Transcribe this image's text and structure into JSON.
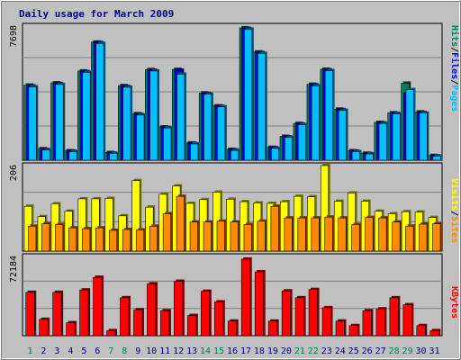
{
  "chart_data": [
    {
      "type": "bar",
      "panel": "pages_files_hits",
      "title": "Daily usage for March 2009",
      "categories": [
        "1",
        "2",
        "3",
        "4",
        "5",
        "6",
        "7",
        "8",
        "9",
        "10",
        "11",
        "12",
        "13",
        "14",
        "15",
        "16",
        "17",
        "18",
        "19",
        "20",
        "21",
        "22",
        "23",
        "24",
        "25",
        "26",
        "27",
        "28",
        "29",
        "30",
        "31"
      ],
      "weekend_categories": [
        "1",
        "7",
        "8",
        "14",
        "15",
        "21",
        "22",
        "28",
        "29"
      ],
      "ymax_label": "7698",
      "ylim": [
        0,
        7698
      ],
      "series": [
        {
          "name": "Hits",
          "color": "#00805c",
          "values": [
            4310,
            660,
            4440,
            540,
            5120,
            6780,
            440,
            4280,
            2670,
            5200,
            1910,
            5210,
            990,
            3860,
            3120,
            620,
            7600,
            6210,
            740,
            1370,
            2110,
            4360,
            5220,
            2930,
            540,
            400,
            2170,
            2720,
            4420,
            2770,
            270
          ]
        },
        {
          "name": "Files",
          "color": "#0000ff",
          "values": [
            4260,
            620,
            4400,
            520,
            5080,
            6750,
            410,
            4230,
            2630,
            5160,
            1880,
            5170,
            960,
            3830,
            3090,
            590,
            7560,
            6170,
            710,
            1340,
            2070,
            4320,
            5180,
            2900,
            520,
            380,
            2140,
            2690,
            3880,
            2740,
            250
          ]
        },
        {
          "name": "Pages",
          "color": "#00bfff",
          "values": [
            4210,
            590,
            4350,
            490,
            5040,
            6700,
            390,
            4190,
            2590,
            5120,
            1850,
            4940,
            930,
            3790,
            3060,
            560,
            7520,
            6130,
            680,
            1310,
            2040,
            4270,
            5140,
            2860,
            490,
            360,
            2110,
            2660,
            4050,
            2700,
            230
          ]
        }
      ],
      "ylabel": [
        "Pages",
        "Files",
        "Hits"
      ]
    },
    {
      "type": "bar",
      "panel": "visits_sites",
      "categories": [
        "1",
        "2",
        "3",
        "4",
        "5",
        "6",
        "7",
        "8",
        "9",
        "10",
        "11",
        "12",
        "13",
        "14",
        "15",
        "16",
        "17",
        "18",
        "19",
        "20",
        "21",
        "22",
        "23",
        "24",
        "25",
        "26",
        "27",
        "28",
        "29",
        "30",
        "31"
      ],
      "ymax_label": "206",
      "ylim": [
        0,
        206
      ],
      "series": [
        {
          "name": "Visits",
          "color": "#ffff00",
          "values": [
            108,
            83,
            114,
            96,
            126,
            126,
            127,
            85,
            170,
            106,
            137,
            157,
            115,
            124,
            142,
            125,
            119,
            116,
            115,
            119,
            132,
            131,
            206,
            120,
            140,
            120,
            96,
            90,
            95,
            94,
            81
          ]
        },
        {
          "name": "Sites",
          "color": "#ff8c00",
          "values": [
            60,
            66,
            64,
            56,
            54,
            56,
            50,
            52,
            51,
            60,
            90,
            132,
            70,
            70,
            72,
            70,
            64,
            72,
            108,
            80,
            80,
            80,
            82,
            80,
            64,
            81,
            80,
            70,
            60,
            65,
            66
          ]
        }
      ],
      "ylabel": [
        "Sites",
        "Visits"
      ]
    },
    {
      "type": "bar",
      "panel": "kbytes",
      "categories": [
        "1",
        "2",
        "3",
        "4",
        "5",
        "6",
        "7",
        "8",
        "9",
        "10",
        "11",
        "12",
        "13",
        "14",
        "15",
        "16",
        "17",
        "18",
        "19",
        "20",
        "21",
        "22",
        "23",
        "24",
        "25",
        "26",
        "27",
        "28",
        "29",
        "30",
        "31"
      ],
      "ymax_label": "72184",
      "ylim": [
        0,
        72184
      ],
      "series": [
        {
          "name": "KBytes",
          "color": "#ff0000",
          "values": [
            39500,
            14900,
            39500,
            11800,
            41700,
            53200,
            4600,
            34600,
            23600,
            47300,
            22800,
            49600,
            18400,
            40500,
            30800,
            13300,
            69800,
            58200,
            13300,
            40800,
            34600,
            42100,
            25500,
            13300,
            9200,
            22800,
            24400,
            34600,
            28200,
            9200,
            4600
          ]
        }
      ],
      "ylabel": [
        "KBytes"
      ]
    }
  ]
}
